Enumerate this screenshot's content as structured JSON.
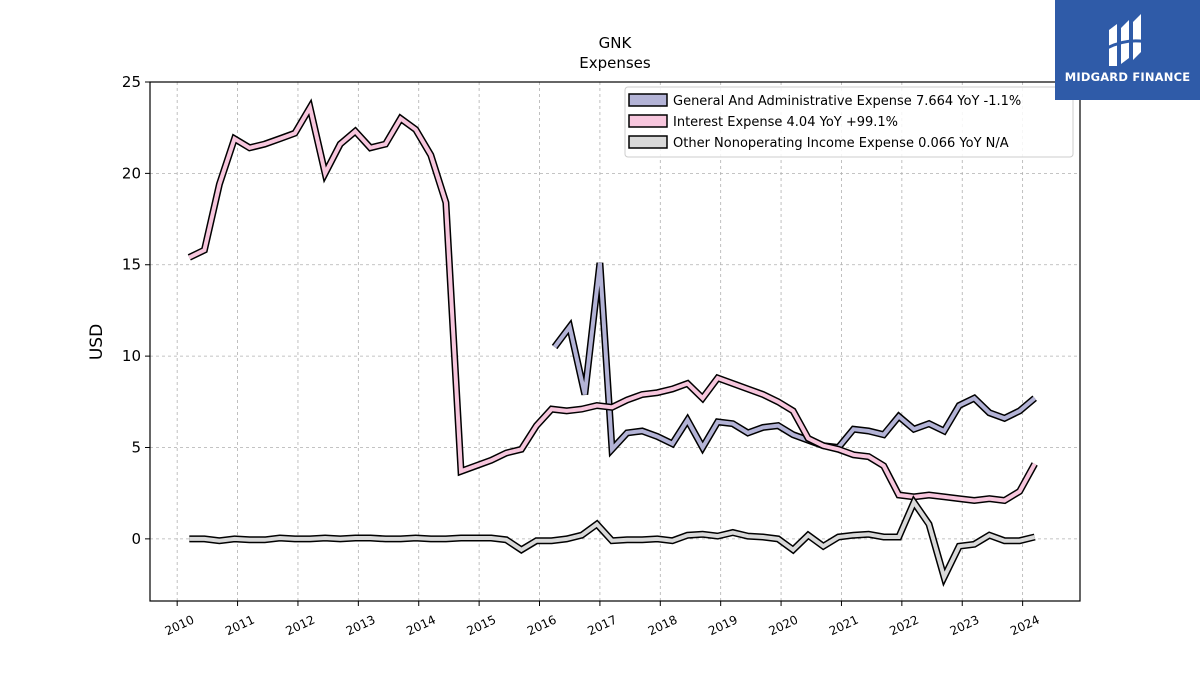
{
  "chart_data": {
    "type": "line",
    "title": "GNK",
    "subtitle": "Expenses",
    "ylabel": "USD",
    "xlabel": "",
    "ylim": [
      -3.4,
      25
    ],
    "yticks": [
      0,
      5,
      10,
      15,
      20,
      25
    ],
    "xlim": [
      2009.55,
      2024.95
    ],
    "xticks": [
      2010,
      2011,
      2012,
      2013,
      2014,
      2015,
      2016,
      2017,
      2018,
      2019,
      2020,
      2021,
      2022,
      2023,
      2024
    ],
    "grid": true,
    "legend_position": "top-right",
    "series": [
      {
        "name": "General And Administrative Expense  7.664 YoY -1.1%",
        "color": "#b3b3d6",
        "points": [
          [
            2016.25,
            10.5
          ],
          [
            2016.5,
            11.6
          ],
          [
            2016.75,
            7.9
          ],
          [
            2017.0,
            15.1
          ],
          [
            2017.2,
            4.9
          ],
          [
            2017.45,
            5.8
          ],
          [
            2017.7,
            5.9
          ],
          [
            2017.95,
            5.6
          ],
          [
            2018.2,
            5.2
          ],
          [
            2018.45,
            6.5
          ],
          [
            2018.7,
            5.0
          ],
          [
            2018.95,
            6.4
          ],
          [
            2019.2,
            6.3
          ],
          [
            2019.45,
            5.8
          ],
          [
            2019.7,
            6.1
          ],
          [
            2019.95,
            6.2
          ],
          [
            2020.2,
            5.7
          ],
          [
            2020.45,
            5.4
          ],
          [
            2020.7,
            5.1
          ],
          [
            2020.95,
            5.0
          ],
          [
            2021.2,
            6.0
          ],
          [
            2021.45,
            5.9
          ],
          [
            2021.7,
            5.7
          ],
          [
            2021.95,
            6.7
          ],
          [
            2022.2,
            6.0
          ],
          [
            2022.45,
            6.3
          ],
          [
            2022.7,
            5.9
          ],
          [
            2022.95,
            7.3
          ],
          [
            2023.2,
            7.7
          ],
          [
            2023.45,
            6.9
          ],
          [
            2023.7,
            6.6
          ],
          [
            2023.95,
            7.0
          ],
          [
            2024.2,
            7.7
          ]
        ]
      },
      {
        "name": "Interest Expense  4.04 YoY +99.1%",
        "color": "#f7c6dd",
        "points": [
          [
            2010.2,
            15.4
          ],
          [
            2010.45,
            15.8
          ],
          [
            2010.7,
            19.4
          ],
          [
            2010.95,
            21.9
          ],
          [
            2011.2,
            21.4
          ],
          [
            2011.45,
            21.6
          ],
          [
            2011.7,
            21.9
          ],
          [
            2011.95,
            22.2
          ],
          [
            2012.2,
            23.6
          ],
          [
            2012.45,
            20.0
          ],
          [
            2012.7,
            21.6
          ],
          [
            2012.95,
            22.3
          ],
          [
            2013.2,
            21.4
          ],
          [
            2013.45,
            21.6
          ],
          [
            2013.7,
            23.0
          ],
          [
            2013.95,
            22.4
          ],
          [
            2014.2,
            21.0
          ],
          [
            2014.45,
            18.4
          ],
          [
            2014.7,
            3.7
          ],
          [
            2014.95,
            4.0
          ],
          [
            2015.2,
            4.3
          ],
          [
            2015.45,
            4.7
          ],
          [
            2015.7,
            4.9
          ],
          [
            2015.95,
            6.2
          ],
          [
            2016.2,
            7.1
          ],
          [
            2016.45,
            7.0
          ],
          [
            2016.7,
            7.1
          ],
          [
            2016.95,
            7.3
          ],
          [
            2017.2,
            7.2
          ],
          [
            2017.45,
            7.6
          ],
          [
            2017.7,
            7.9
          ],
          [
            2017.95,
            8.0
          ],
          [
            2018.2,
            8.2
          ],
          [
            2018.45,
            8.5
          ],
          [
            2018.7,
            7.7
          ],
          [
            2018.95,
            8.8
          ],
          [
            2019.2,
            8.5
          ],
          [
            2019.45,
            8.2
          ],
          [
            2019.7,
            7.9
          ],
          [
            2019.95,
            7.5
          ],
          [
            2020.2,
            7.0
          ],
          [
            2020.45,
            5.5
          ],
          [
            2020.7,
            5.1
          ],
          [
            2020.95,
            4.9
          ],
          [
            2021.2,
            4.6
          ],
          [
            2021.45,
            4.5
          ],
          [
            2021.7,
            4.0
          ],
          [
            2021.95,
            2.4
          ],
          [
            2022.2,
            2.3
          ],
          [
            2022.45,
            2.4
          ],
          [
            2022.7,
            2.3
          ],
          [
            2022.95,
            2.2
          ],
          [
            2023.2,
            2.1
          ],
          [
            2023.45,
            2.2
          ],
          [
            2023.7,
            2.1
          ],
          [
            2023.95,
            2.6
          ],
          [
            2024.2,
            4.1
          ]
        ]
      },
      {
        "name": "Other Nonoperating Income Expense  0.066 YoY N/A",
        "color": "#d9d9d9",
        "points": [
          [
            2010.2,
            0.0
          ],
          [
            2010.45,
            0.0
          ],
          [
            2010.7,
            -0.1
          ],
          [
            2010.95,
            0.0
          ],
          [
            2011.2,
            -0.05
          ],
          [
            2011.45,
            -0.05
          ],
          [
            2011.7,
            0.05
          ],
          [
            2011.95,
            0.0
          ],
          [
            2012.2,
            0.0
          ],
          [
            2012.45,
            0.05
          ],
          [
            2012.7,
            0.0
          ],
          [
            2012.95,
            0.05
          ],
          [
            2013.2,
            0.05
          ],
          [
            2013.45,
            0.0
          ],
          [
            2013.7,
            0.0
          ],
          [
            2013.95,
            0.05
          ],
          [
            2014.2,
            0.0
          ],
          [
            2014.45,
            0.0
          ],
          [
            2014.7,
            0.05
          ],
          [
            2014.95,
            0.05
          ],
          [
            2015.2,
            0.05
          ],
          [
            2015.45,
            -0.05
          ],
          [
            2015.7,
            -0.6
          ],
          [
            2015.95,
            -0.1
          ],
          [
            2016.2,
            -0.1
          ],
          [
            2016.45,
            0.0
          ],
          [
            2016.7,
            0.2
          ],
          [
            2016.95,
            0.8
          ],
          [
            2017.2,
            -0.1
          ],
          [
            2017.45,
            -0.05
          ],
          [
            2017.7,
            -0.05
          ],
          [
            2017.95,
            0.0
          ],
          [
            2018.2,
            -0.1
          ],
          [
            2018.45,
            0.2
          ],
          [
            2018.7,
            0.25
          ],
          [
            2018.95,
            0.15
          ],
          [
            2019.2,
            0.35
          ],
          [
            2019.45,
            0.15
          ],
          [
            2019.7,
            0.1
          ],
          [
            2019.95,
            0.0
          ],
          [
            2020.2,
            -0.6
          ],
          [
            2020.45,
            0.2
          ],
          [
            2020.7,
            -0.4
          ],
          [
            2020.95,
            0.1
          ],
          [
            2021.2,
            0.2
          ],
          [
            2021.45,
            0.25
          ],
          [
            2021.7,
            0.1
          ],
          [
            2021.95,
            0.1
          ],
          [
            2022.2,
            2.0
          ],
          [
            2022.45,
            0.8
          ],
          [
            2022.7,
            -2.1
          ],
          [
            2022.95,
            -0.4
          ],
          [
            2023.2,
            -0.3
          ],
          [
            2023.45,
            0.2
          ],
          [
            2023.7,
            -0.1
          ],
          [
            2023.95,
            -0.1
          ],
          [
            2024.2,
            0.1
          ]
        ]
      }
    ]
  },
  "logo": {
    "text": "MIDGARD FINANCE",
    "background": "#2f5ba8"
  }
}
